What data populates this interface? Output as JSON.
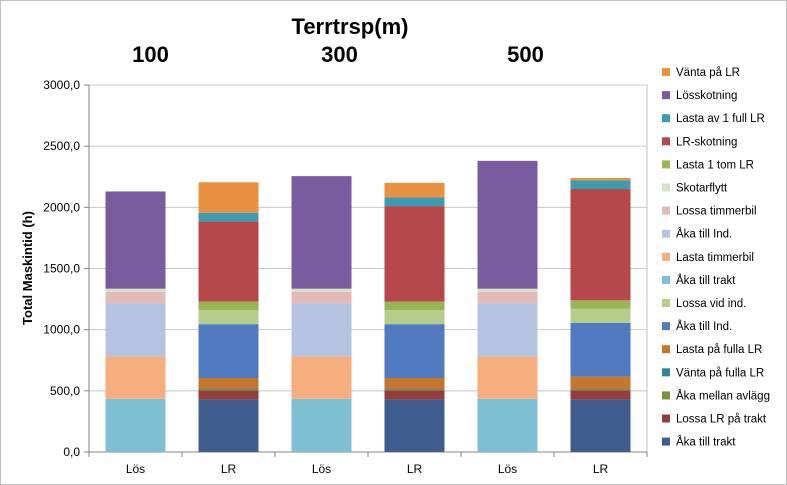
{
  "chart_data": {
    "type": "bar",
    "stacked": true,
    "title": "Terrtrsp(m)",
    "group_labels": [
      "100",
      "300",
      "500"
    ],
    "categories": [
      "Lös",
      "LR",
      "Lös",
      "LR",
      "Lös",
      "LR"
    ],
    "ylabel": "Total Maskintid (h)",
    "xlabel": "",
    "ylim": [
      0,
      3000
    ],
    "yticks": [
      "0,0",
      "500,0",
      "1000,0",
      "1500,0",
      "2000,0",
      "2500,0",
      "3000,0"
    ],
    "grid": true,
    "legend_position": "right",
    "series": [
      {
        "name": "Åka till trakt",
        "color": "#3e5c8e",
        "values": [
          0,
          430,
          0,
          430,
          0,
          430
        ]
      },
      {
        "name": "Lossa LR på trakt",
        "color": "#943d3a",
        "values": [
          0,
          75,
          0,
          75,
          0,
          75
        ]
      },
      {
        "name": "Åka mellan avlägg",
        "color": "#77933c",
        "values": [
          0,
          5,
          0,
          5,
          0,
          5
        ]
      },
      {
        "name": "Vänta på fulla LR",
        "color": "#31859c",
        "values": [
          0,
          5,
          0,
          5,
          0,
          5
        ]
      },
      {
        "name": "Lasta på fulla LR",
        "color": "#c6762b",
        "values": [
          0,
          90,
          0,
          90,
          0,
          100
        ]
      },
      {
        "name": "Åka till Ind.",
        "color": "#4f7ac0",
        "values": [
          0,
          440,
          0,
          440,
          0,
          440
        ]
      },
      {
        "name": "Lossa vid ind.",
        "color": "#b6cc8b",
        "values": [
          0,
          115,
          0,
          115,
          0,
          115
        ]
      },
      {
        "name": "Åka till trakt",
        "color": "#7ebfd4",
        "values": [
          435,
          0,
          435,
          0,
          435,
          0
        ]
      },
      {
        "name": "Lasta timmerbil",
        "color": "#f6ae7e",
        "values": [
          345,
          0,
          345,
          0,
          345,
          0
        ]
      },
      {
        "name": "Åka till Ind.",
        "color": "#b4c3df",
        "values": [
          435,
          0,
          435,
          0,
          435,
          0
        ]
      },
      {
        "name": "Lossa timmerbil",
        "color": "#e4b9ba",
        "values": [
          95,
          0,
          95,
          0,
          95,
          0
        ]
      },
      {
        "name": "Skotarflytt",
        "color": "#d4e3c4",
        "values": [
          25,
          0,
          25,
          0,
          25,
          0
        ]
      },
      {
        "name": "Lasta 1 tom LR",
        "color": "#9ab654",
        "values": [
          0,
          70,
          0,
          70,
          0,
          70
        ]
      },
      {
        "name": "LR-skotning",
        "color": "#b6474a",
        "values": [
          0,
          655,
          0,
          780,
          0,
          910
        ]
      },
      {
        "name": "Lasta av 1 full LR",
        "color": "#3a9bb1",
        "values": [
          0,
          70,
          0,
          70,
          0,
          70
        ]
      },
      {
        "name": "Lösskotning",
        "color": "#7b5b9f",
        "values": [
          795,
          0,
          920,
          0,
          1045,
          0
        ]
      },
      {
        "name": "Vänta på LR",
        "color": "#e99140",
        "values": [
          0,
          250,
          0,
          120,
          0,
          20
        ]
      }
    ]
  }
}
